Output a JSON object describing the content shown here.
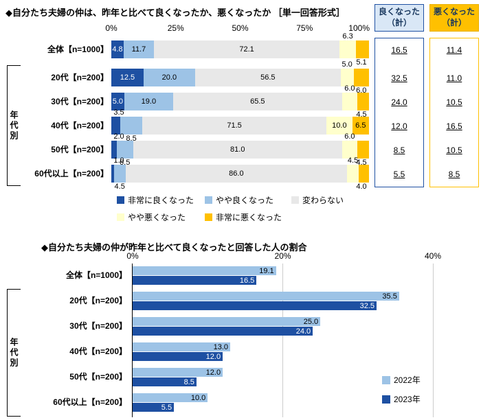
{
  "chart_data": [
    {
      "type": "bar",
      "variant": "stacked-horizontal-percent",
      "title": "◆自分たち夫婦の仲は、昨年と比べて良くなったか、悪くなったか ［単一回答形式］",
      "xlim": [
        0,
        100
      ],
      "tick_labels": [
        "0%",
        "25%",
        "50%",
        "75%",
        "100%"
      ],
      "group_label": "年代別",
      "series_labels": [
        "非常に良くなった",
        "やや良くなった",
        "変わらない",
        "やや悪くなった",
        "非常に悪くなった"
      ],
      "series_colors": [
        "#1e50a2",
        "#9dc3e6",
        "#e8e8e8",
        "#ffffcc",
        "#ffc000"
      ],
      "categories": [
        "全体【n=1000】",
        "20代【n=200】",
        "30代【n=200】",
        "40代【n=200】",
        "50代【n=200】",
        "60代以上【n=200】"
      ],
      "rows": [
        {
          "values": [
            4.8,
            11.7,
            72.1,
            6.3,
            5.1
          ],
          "placements": [
            "in",
            "in",
            "in",
            "up",
            "down"
          ]
        },
        {
          "values": [
            12.5,
            20.0,
            56.5,
            5.0,
            6.0
          ],
          "placements": [
            "in",
            "in",
            "in",
            "up",
            "down"
          ]
        },
        {
          "values": [
            5.0,
            19.0,
            65.5,
            6.0,
            4.5
          ],
          "placements": [
            "in",
            "in",
            "in",
            "up",
            "down"
          ]
        },
        {
          "values": [
            3.5,
            8.5,
            71.5,
            10.0,
            6.5
          ],
          "placements": [
            "up",
            "down",
            "in",
            "in",
            "in"
          ]
        },
        {
          "values": [
            2.0,
            6.5,
            81.0,
            6.0,
            4.5
          ],
          "placements": [
            "up",
            "down",
            "in",
            "up",
            "down"
          ]
        },
        {
          "values": [
            1.0,
            4.5,
            86.0,
            4.5,
            4.0
          ],
          "placements": [
            "up",
            "down",
            "in",
            "up",
            "down"
          ]
        }
      ],
      "summary_columns": [
        {
          "header": "良くなった\n（計）",
          "border_color": "#1e50a2",
          "bg_color": "#d9e7f6",
          "values": [
            16.5,
            32.5,
            24.0,
            12.0,
            8.5,
            5.5
          ]
        },
        {
          "header": "悪くなった\n（計）",
          "border_color": "#ffc000",
          "bg_color": "#ffc000",
          "values": [
            11.4,
            11.0,
            10.5,
            16.5,
            10.5,
            8.5
          ]
        }
      ]
    },
    {
      "type": "bar",
      "variant": "grouped-horizontal",
      "title": "◆自分たち夫婦の仲が昨年と比べて良くなったと回答した人の割合",
      "xlim": [
        0,
        40
      ],
      "tick_labels": [
        "0%",
        "20%",
        "40%"
      ],
      "group_label": "年代別",
      "categories": [
        "全体【n=1000】",
        "20代【n=200】",
        "30代【n=200】",
        "40代【n=200】",
        "50代【n=200】",
        "60代以上【n=200】"
      ],
      "series": [
        {
          "name": "2022年",
          "color": "#9dc3e6",
          "values": [
            19.1,
            35.5,
            25.0,
            13.0,
            12.0,
            10.0
          ]
        },
        {
          "name": "2023年",
          "color": "#1e50a2",
          "values": [
            16.5,
            32.5,
            24.0,
            12.0,
            8.5,
            5.5
          ]
        }
      ]
    }
  ]
}
